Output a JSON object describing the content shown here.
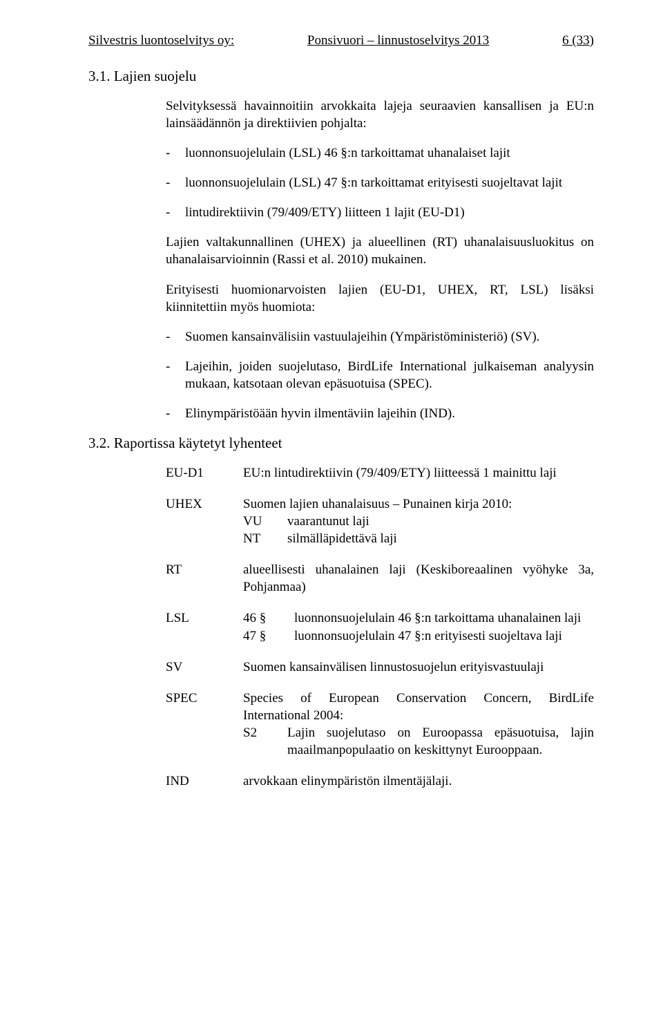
{
  "header": {
    "left": "Silvestris luontoselvitys oy:",
    "center": "Ponsivuori – linnustoselvitys 2013",
    "right": "6 (33)"
  },
  "section31": {
    "number_title": "3.1. Lajien suojelu",
    "intro": "Selvityksessä havainnoitiin arvokkaita lajeja seuraavien kansallisen ja EU:n lainsäädännön ja direktiivien pohjalta:",
    "bullets": [
      "luonnonsuojelulain (LSL) 46 §:n tarkoittamat uhanalaiset lajit",
      "luonnonsuojelulain (LSL) 47 §:n tarkoittamat erityisesti suojeltavat lajit",
      "lintudirektiivin (79/409/ETY) liitteen 1 lajit (EU-D1)"
    ],
    "para1": "Lajien valtakunnallinen (UHEX) ja alueellinen (RT) uhanalaisuusluokitus on uhanalaisarvioinnin (Rassi et al. 2010) mukainen.",
    "para2": "Erityisesti huomionarvoisten lajien (EU-D1, UHEX, RT, LSL) lisäksi kiinnitettiin myös huomiota:",
    "bullets2": [
      "Suomen kansainvälisiin vastuulajeihin (Ympäristöministeriö) (SV).",
      "Lajeihin, joiden suojelutaso, BirdLife International julkaiseman analyysin mukaan, katsotaan olevan epäsuotuisa (SPEC).",
      "Elinympäristöään hyvin ilmentäviin lajeihin (IND)."
    ]
  },
  "section32": {
    "number_title": "3.2. Raportissa käytetyt lyhenteet",
    "defs": {
      "eu_d1": {
        "term": "EU-D1",
        "def": "EU:n lintudirektiivin (79/409/ETY) liitteessä 1 mainittu laji"
      },
      "uhex": {
        "term": "UHEX",
        "lead": "Suomen lajien uhanalaisuus – Punainen kirja 2010:",
        "rows": [
          {
            "k": "VU",
            "v": "vaarantunut laji"
          },
          {
            "k": "NT",
            "v": "silmälläpidettävä laji"
          }
        ]
      },
      "rt": {
        "term": "RT",
        "def": "alueellisesti uhanalainen laji (Keskiboreaalinen vyöhyke 3a, Pohjanmaa)"
      },
      "lsl": {
        "term": "LSL",
        "rows": [
          {
            "k": "46 §",
            "v": "luonnonsuojelulain 46 §:n tarkoittama uhanalainen laji"
          },
          {
            "k": "47 §",
            "v": "luonnonsuojelulain 47 §:n erityisesti suojeltava laji"
          }
        ]
      },
      "sv": {
        "term": "SV",
        "def": "Suomen kansainvälisen linnustosuojelun erityisvastuulaji"
      },
      "spec": {
        "term": "SPEC",
        "lead": "Species of European Conservation Concern, BirdLife International 2004:",
        "rows": [
          {
            "k": "S2",
            "v": "Lajin suojelutaso on Euroopassa epäsuotuisa, lajin maailmanpopulaatio on keskittynyt Eurooppaan."
          }
        ]
      },
      "ind": {
        "term": "IND",
        "def": "arvokkaan elinympäristön ilmentäjälaji."
      }
    }
  }
}
